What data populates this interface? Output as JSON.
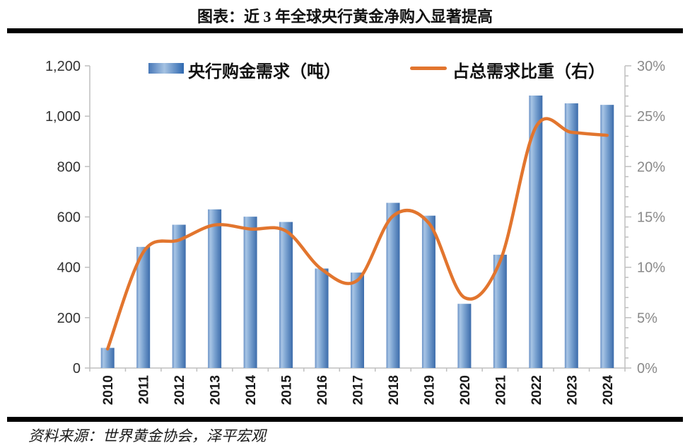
{
  "title": "图表：近 3 年全球央行黄金净购入显著提高",
  "source": "资料来源：世界黄金协会，泽平宏观",
  "legend": {
    "bars_label": "央行购金需求（吨）",
    "line_label": "占总需求比重（右）"
  },
  "colors": {
    "bar_gradient": [
      "#6890C5",
      "#A8C5E5",
      "#7AA2D0",
      "#3C6CAB"
    ],
    "line": "#E2752E",
    "axis_line": "#BFBFBF",
    "left_tick_text": "#333333",
    "right_tick_text": "#8A8A8A",
    "year_text": "#1A1A1A"
  },
  "chart_data": {
    "type": "bar+line",
    "title": "图表：近 3 年全球央行黄金净购入显著提高",
    "categories": [
      "2010",
      "2011",
      "2012",
      "2013",
      "2014",
      "2015",
      "2016",
      "2017",
      "2018",
      "2019",
      "2020",
      "2021",
      "2022",
      "2023",
      "2024"
    ],
    "series": [
      {
        "name": "央行购金需求（吨）",
        "type": "bar",
        "axis": "left",
        "values": [
          80,
          481,
          569,
          630,
          601,
          580,
          395,
          379,
          656,
          605,
          255,
          450,
          1082,
          1051,
          1045
        ]
      },
      {
        "name": "占总需求比重（右）",
        "type": "line",
        "axis": "right",
        "values": [
          1.9,
          11.5,
          12.7,
          14.2,
          13.8,
          13.6,
          9.8,
          8.7,
          15.1,
          14.4,
          7.0,
          10.6,
          23.9,
          23.4,
          23.1
        ]
      }
    ],
    "left_axis": {
      "min": 0,
      "max": 1200,
      "tick_interval": 200,
      "tick_labels": [
        "0",
        "200",
        "400",
        "600",
        "800",
        "1,000",
        "1,200"
      ]
    },
    "right_axis": {
      "min": 0,
      "max": 30,
      "tick_interval": 5,
      "minor_interval": 1,
      "tick_labels": [
        "0%",
        "5%",
        "10%",
        "15%",
        "20%",
        "25%",
        "30%"
      ]
    },
    "legend_position": "top",
    "grid": false
  }
}
